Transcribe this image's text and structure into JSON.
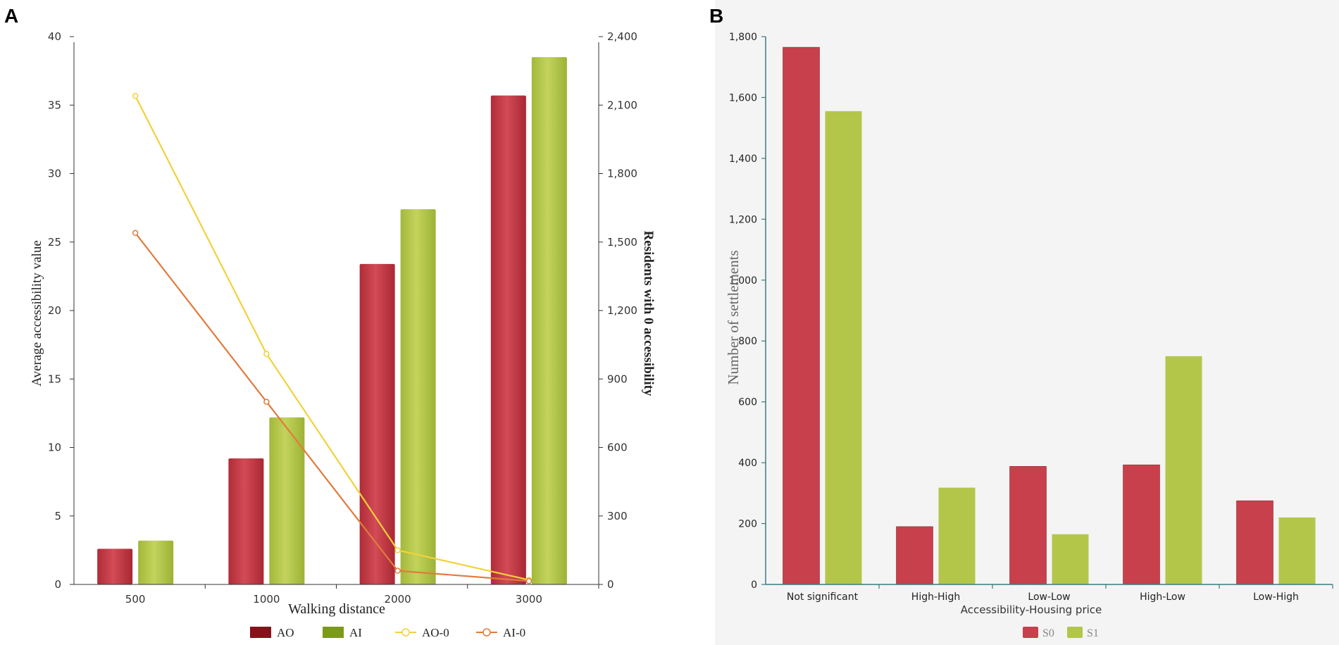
{
  "chart_data": [
    {
      "panel_label": "A",
      "type": "bar",
      "title": "",
      "xlabel": "Walking distance",
      "ylabel": "Average accessibility value",
      "y2label": "Residents with 0 accessibility",
      "categories": [
        "500",
        "1000",
        "2000",
        "3000"
      ],
      "ylim": [
        0,
        40
      ],
      "yticks": [
        "0",
        "5",
        "10",
        "15",
        "20",
        "25",
        "30",
        "35",
        "40"
      ],
      "y2lim": [
        0,
        2400
      ],
      "y2ticks": [
        "0",
        "300",
        "600",
        "900",
        "1,200",
        "1,500",
        "1,800",
        "2,100",
        "2,400"
      ],
      "series": [
        {
          "name": "AO",
          "kind": "bar",
          "axis": "left",
          "color": "#c8404b",
          "legend_color": "#8b0f1a",
          "values": [
            2.6,
            9.2,
            23.4,
            35.7
          ]
        },
        {
          "name": "AI",
          "kind": "bar",
          "axis": "left",
          "color": "#b3c64a",
          "legend_color": "#7b9a1a",
          "values": [
            3.2,
            12.2,
            27.4,
            38.5
          ]
        },
        {
          "name": "AO-0",
          "kind": "line",
          "axis": "right",
          "color": "#f2d13a",
          "values": [
            2140,
            1010,
            150,
            20
          ]
        },
        {
          "name": "AI-0",
          "kind": "line",
          "axis": "right",
          "color": "#e07b3c",
          "values": [
            1540,
            800,
            60,
            15
          ]
        }
      ],
      "legend_position": "bottom"
    },
    {
      "panel_label": "B",
      "type": "bar",
      "title": "",
      "xlabel": "Accessibility-Housing price",
      "ylabel": "Number of settlements",
      "categories": [
        "Not significant",
        "High-High",
        "Low-Low",
        "High-Low",
        "Low-High"
      ],
      "ylim": [
        0,
        1800
      ],
      "yticks": [
        "0",
        "200",
        "400",
        "600",
        "800",
        "1,000",
        "1,200",
        "1,400",
        "1,600",
        "1,800"
      ],
      "series": [
        {
          "name": "S0",
          "kind": "bar",
          "color": "#c8404b",
          "values": [
            1765,
            190,
            388,
            393,
            275
          ]
        },
        {
          "name": "S1",
          "kind": "bar",
          "color": "#b3c64a",
          "values": [
            1555,
            318,
            165,
            750,
            220
          ]
        }
      ],
      "legend_position": "bottom"
    }
  ]
}
